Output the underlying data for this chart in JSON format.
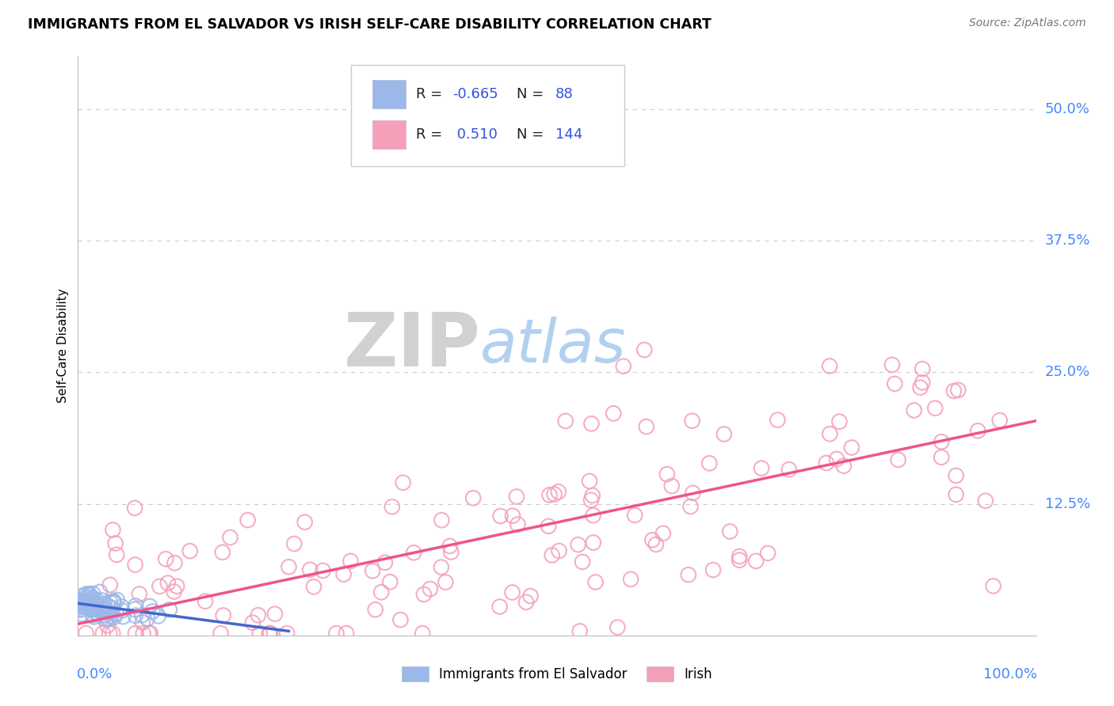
{
  "title": "IMMIGRANTS FROM EL SALVADOR VS IRISH SELF-CARE DISABILITY CORRELATION CHART",
  "source": "Source: ZipAtlas.com",
  "ylabel": "Self-Care Disability",
  "y_tick_labels": [
    "12.5%",
    "25.0%",
    "37.5%",
    "50.0%"
  ],
  "y_tick_values": [
    0.125,
    0.25,
    0.375,
    0.5
  ],
  "xlim": [
    0.0,
    1.0
  ],
  "ylim": [
    0.0,
    0.55
  ],
  "color_blue": "#9BB8E8",
  "color_pink": "#F4A0B8",
  "color_blue_line": "#4466CC",
  "color_pink_line": "#EE5588",
  "watermark_zip": "ZIP",
  "watermark_atlas": "atlas",
  "watermark_zip_color": "#CCCCCC",
  "watermark_atlas_color": "#AACCEE",
  "tick_label_color": "#4488FF",
  "grid_color": "#CCCCCC",
  "background_color": "#FFFFFF",
  "legend_text_color": "#333333",
  "legend_r1_val_color": "#3355DD",
  "legend_n1_val_color": "#3355DD",
  "legend_r2_val_color": "#3355DD",
  "legend_n2_val_color": "#3355DD"
}
